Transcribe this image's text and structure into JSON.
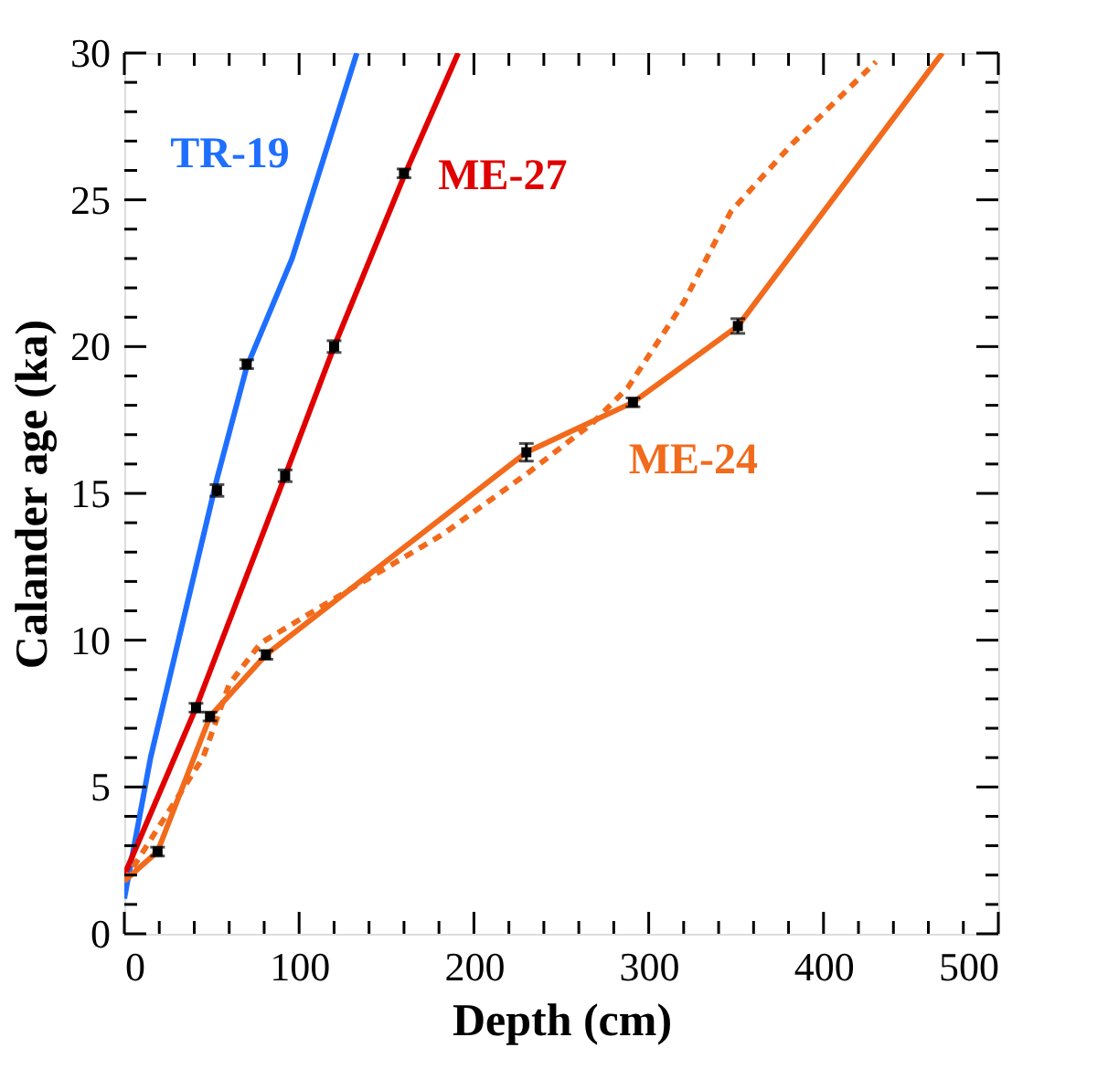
{
  "chart_data": {
    "type": "line",
    "xlabel": "Depth (cm)",
    "ylabel": "Calander age (ka)",
    "xlim": [
      0,
      500
    ],
    "ylim": [
      0,
      30
    ],
    "xticks": [
      0,
      {
        "value": 20,
        "label": null
      },
      {
        "value": 40,
        "label": null
      },
      {
        "value": 60,
        "label": null
      },
      {
        "value": 80,
        "label": null
      },
      100,
      {
        "value": 120,
        "label": null
      },
      {
        "value": 140,
        "label": null
      },
      {
        "value": 160,
        "label": null
      },
      {
        "value": 180,
        "label": null
      },
      200,
      {
        "value": 220,
        "label": null
      },
      {
        "value": 240,
        "label": null
      },
      {
        "value": 260,
        "label": null
      },
      {
        "value": 280,
        "label": null
      },
      300,
      {
        "value": 320,
        "label": null
      },
      {
        "value": 340,
        "label": null
      },
      {
        "value": 360,
        "label": null
      },
      {
        "value": 380,
        "label": null
      },
      400,
      {
        "value": 420,
        "label": null
      },
      {
        "value": 440,
        "label": null
      },
      {
        "value": 460,
        "label": null
      },
      {
        "value": 480,
        "label": null
      },
      500
    ],
    "yticks": [
      0,
      {
        "value": 1,
        "label": null
      },
      {
        "value": 2,
        "label": null
      },
      {
        "value": 3,
        "label": null
      },
      {
        "value": 4,
        "label": null
      },
      5,
      {
        "value": 6,
        "label": null
      },
      {
        "value": 7,
        "label": null
      },
      {
        "value": 8,
        "label": null
      },
      {
        "value": 9,
        "label": null
      },
      10,
      {
        "value": 11,
        "label": null
      },
      {
        "value": 12,
        "label": null
      },
      {
        "value": 13,
        "label": null
      },
      {
        "value": 14,
        "label": null
      },
      15,
      {
        "value": 16,
        "label": null
      },
      {
        "value": 17,
        "label": null
      },
      {
        "value": 18,
        "label": null
      },
      {
        "value": 19,
        "label": null
      },
      20,
      {
        "value": 21,
        "label": null
      },
      {
        "value": 22,
        "label": null
      },
      {
        "value": 23,
        "label": null
      },
      {
        "value": 24,
        "label": null
      },
      25,
      {
        "value": 26,
        "label": null
      },
      {
        "value": 27,
        "label": null
      },
      {
        "value": 28,
        "label": null
      },
      {
        "value": 29,
        "label": null
      },
      30
    ],
    "grid": false,
    "line_style": "solid",
    "marker": "none",
    "series": [
      {
        "name": "TR-19",
        "color": "#1f6fff",
        "x": [
          0,
          15,
          53,
          70,
          96,
          133
        ],
        "values": [
          1.2,
          6,
          15.5,
          19.3,
          23,
          30
        ]
      },
      {
        "name": "ME-27",
        "color": "#e00000",
        "x": [
          0,
          41,
          92,
          120,
          160,
          191
        ],
        "values": [
          2,
          7.7,
          15.6,
          20,
          25.8,
          30
        ]
      },
      {
        "name": "ME-24",
        "color": "#f26a1b",
        "x": [
          0,
          19,
          49,
          81,
          230,
          291,
          351,
          468
        ],
        "values": [
          1.8,
          2.8,
          7.4,
          9.5,
          16.4,
          18.1,
          20.7,
          30
        ]
      },
      {
        "color": "#f26a1b",
        "line_style": "dashed",
        "x": [
          0,
          45,
          60,
          78,
          117,
          182,
          231,
          268,
          288,
          320,
          347,
          382,
          430
        ],
        "values": [
          1.8,
          6,
          8.5,
          9.9,
          11.3,
          13.6,
          15.7,
          17.4,
          18.6,
          21.5,
          24.6,
          26.9,
          29.7
        ]
      },
      {
        "type": "scatter",
        "marker": "square",
        "color": "#000000",
        "x": [
          53,
          70,
          41,
          92,
          120,
          160,
          19,
          49,
          81,
          230,
          291,
          351
        ],
        "values": [
          15.1,
          19.4,
          7.7,
          15.6,
          20,
          25.9,
          2.8,
          7.4,
          9.5,
          16.4,
          18.1,
          20.7
        ],
        "errors": [
          0.2,
          0.15,
          0.15,
          0.2,
          0.2,
          0.15,
          0.15,
          0.15,
          0.15,
          0.3,
          0.15,
          0.25
        ]
      }
    ]
  }
}
